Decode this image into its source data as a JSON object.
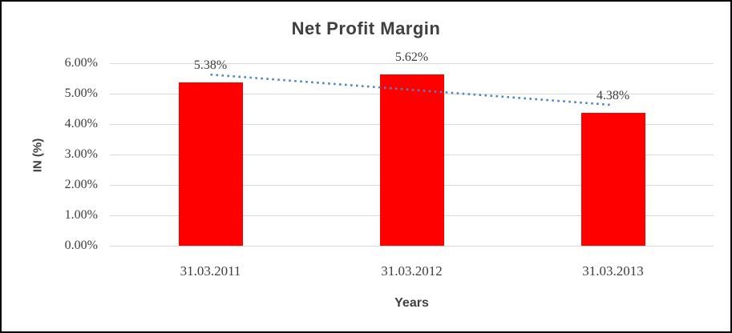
{
  "chart_data": {
    "type": "bar",
    "title": "Net Profit Margin",
    "categories": [
      "31.03.2011",
      "31.03.2012",
      "31.03.2013"
    ],
    "values": [
      5.38,
      5.62,
      4.38
    ],
    "data_labels": [
      "5.38%",
      "5.62%",
      "4.38%"
    ],
    "xlabel": "Years",
    "ylabel": "IN (%)",
    "ylim": [
      0,
      6
    ],
    "y_ticks": [
      "0.00%",
      "1.00%",
      "2.00%",
      "3.00%",
      "4.00%",
      "5.00%",
      "6.00%"
    ],
    "grid": true,
    "legend": "none",
    "trendline": {
      "type": "linear",
      "style": "dotted"
    },
    "colors": {
      "bar": "#ff0000",
      "trend": "#4e86c6",
      "grid": "#d9d9d9",
      "text": "#3f3f3f",
      "border": "#000000"
    }
  }
}
